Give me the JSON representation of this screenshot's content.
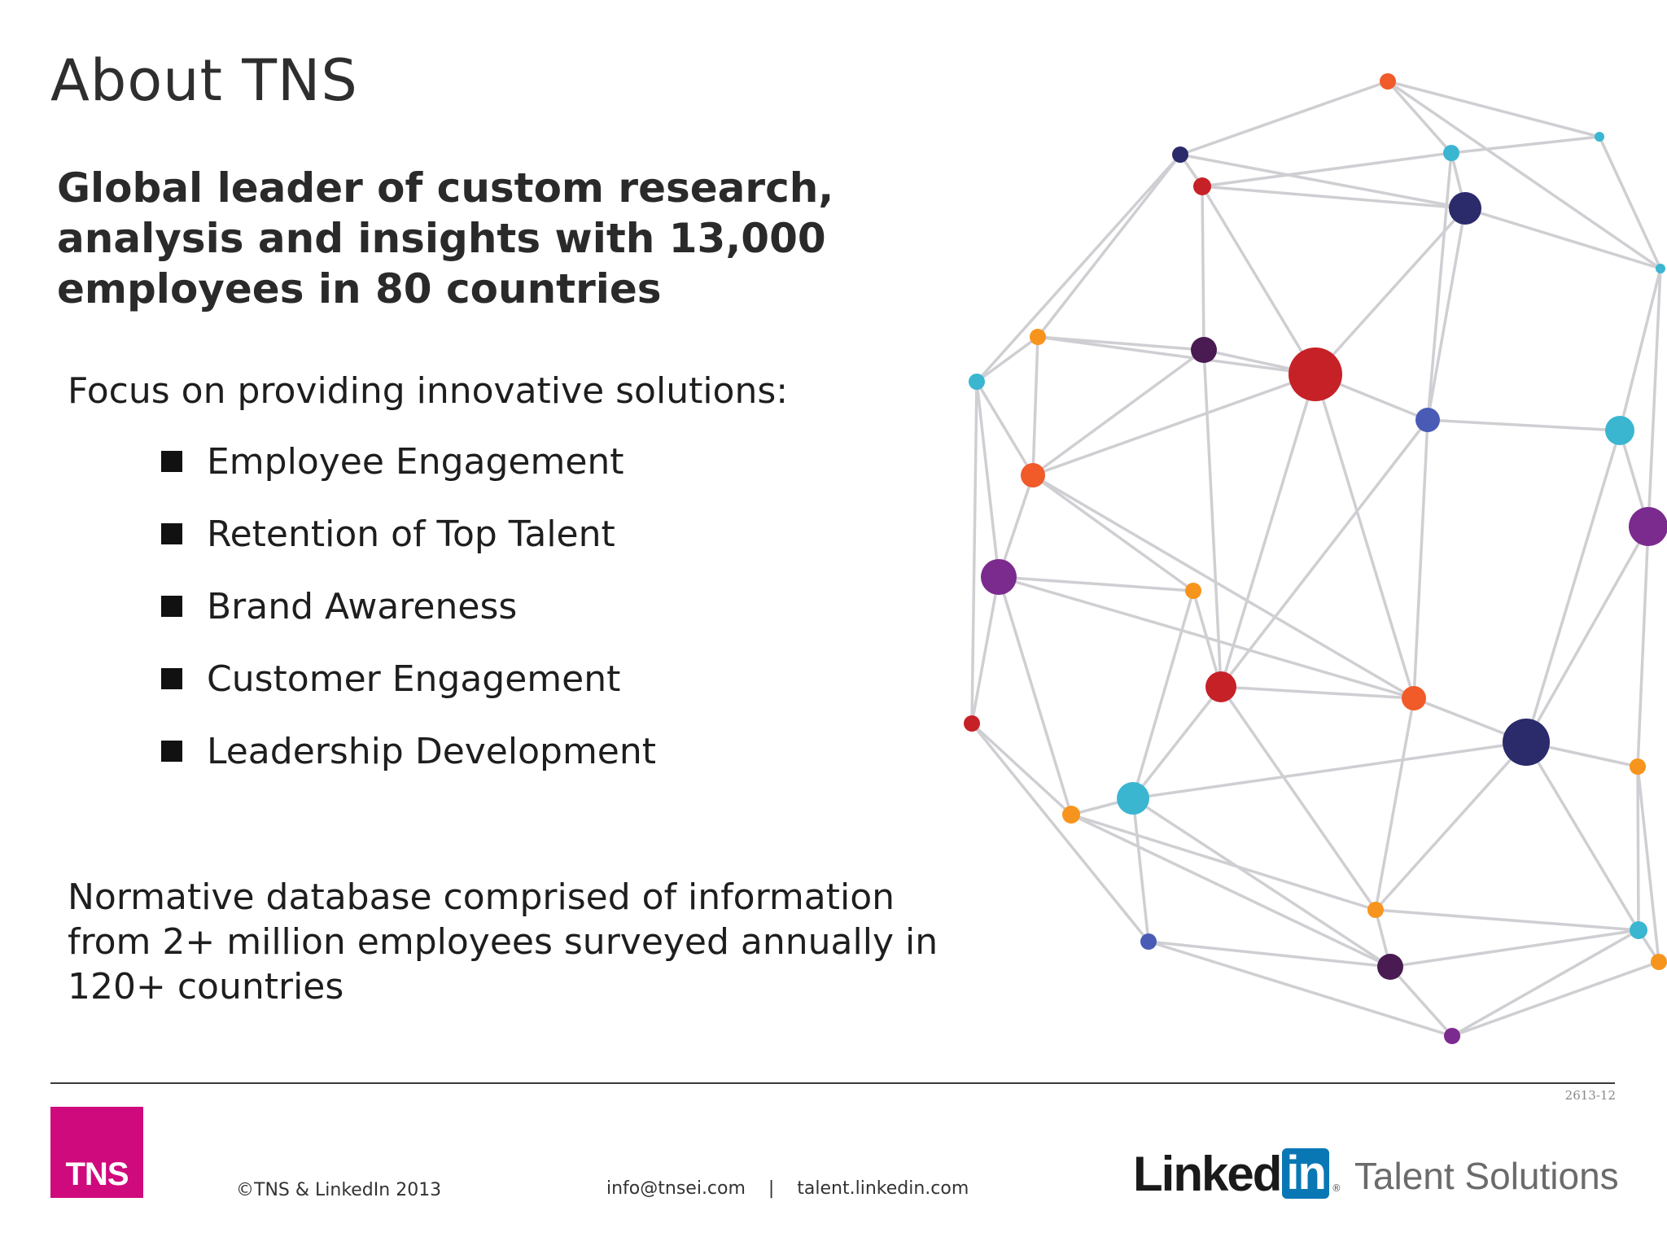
{
  "slide": {
    "title": "About TNS",
    "headline": "Global leader of custom research, analysis and insights with 13,000 employees in 80 countries",
    "focus_intro": "Focus on providing innovative solutions:",
    "solutions": [
      "Employee Engagement",
      "Retention of Top Talent",
      "Brand Awareness",
      "Customer Engagement",
      "Leadership Development"
    ],
    "normative": "Normative database comprised of information from 2+ million employees surveyed annually in 120+ countries"
  },
  "footer": {
    "doc_number": "2613-12",
    "tns_logo_text": "TNS",
    "copyright": "©TNS & LinkedIn 2013",
    "contact": "info@tnsei.com    |    talent.linkedin.com",
    "linkedin_word": "Linked",
    "linkedin_in": "in",
    "linkedin_tagline": "Talent Solutions"
  },
  "colors": {
    "tns_magenta": "#cf0a7c",
    "linkedin_blue": "#0a77b5",
    "network_line": "#cfcfd3",
    "node_red": "#c62127",
    "node_orange": "#f15a29",
    "node_amber": "#f7941d",
    "node_teal": "#3ab6d1",
    "node_navy": "#2b2a6b",
    "node_blue": "#4a5bb5",
    "node_purple": "#7b2a8e",
    "node_plum": "#4a1a52"
  }
}
